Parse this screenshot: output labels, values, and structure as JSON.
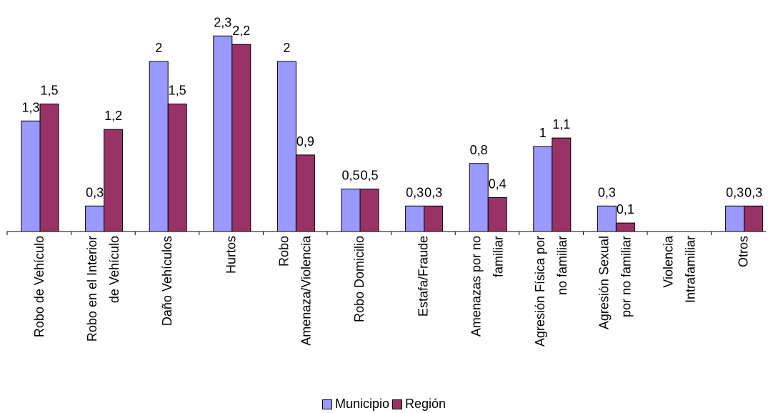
{
  "chart_data": {
    "type": "bar",
    "title": "",
    "xlabel": "",
    "ylabel": "",
    "ylim": [
      0,
      2.3
    ],
    "grid": false,
    "legend_position": "bottom",
    "categories": [
      [
        "Robo de Vehículo"
      ],
      [
        "Robo en el Interior",
        "de Vehículo"
      ],
      [
        "Daño Vehículos"
      ],
      [
        "Hurtos"
      ],
      [
        "Robo",
        "Amenaza/Violencia"
      ],
      [
        "Robo Domicilio"
      ],
      [
        "Estafa/Fraude"
      ],
      [
        "Amenazas por no",
        "familiar"
      ],
      [
        "Agresión Física por",
        "no familiar"
      ],
      [
        "Agresión Sexual",
        "por no familiar"
      ],
      [
        "Violencia",
        "Intrafamiliar"
      ],
      [
        "Otros"
      ]
    ],
    "series": [
      {
        "name": "Municipio",
        "color": "#9999ff",
        "values": [
          1.3,
          0.3,
          2,
          2.3,
          2,
          0.5,
          0.3,
          0.8,
          1,
          0.3,
          null,
          0.3
        ],
        "labels": [
          "1,3",
          "0,3",
          "2",
          "2,3",
          "2",
          "0,5",
          "0,3",
          "0,8",
          "1",
          "0,3",
          "",
          "0,3"
        ]
      },
      {
        "name": "Región",
        "color": "#993366",
        "values": [
          1.5,
          1.2,
          1.5,
          2.2,
          0.9,
          0.5,
          0.3,
          0.4,
          1.1,
          0.1,
          null,
          0.3
        ],
        "labels": [
          "1,5",
          "1,2",
          "1,5",
          "2,2",
          "0,9",
          "0,5",
          "0,3",
          "0,4",
          "1,1",
          "0,1",
          "",
          "0,3"
        ]
      }
    ]
  }
}
